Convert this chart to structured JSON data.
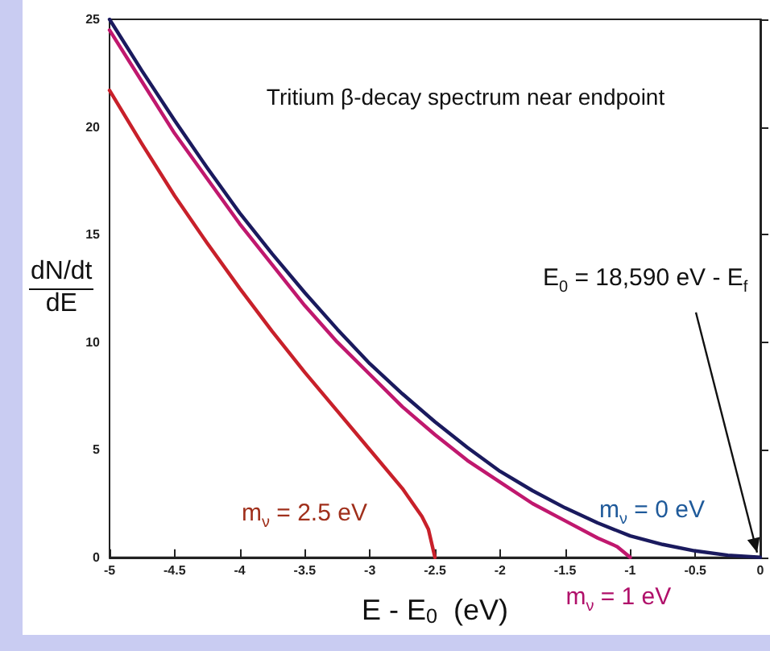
{
  "chart_data": {
    "type": "line",
    "title": "Tritium β-decay spectrum near endpoint",
    "xlabel": "E - E$_{0}$  (eV)",
    "ylabel": "dN/dt\ndE",
    "xlim": [
      -5,
      0
    ],
    "ylim": [
      0,
      25
    ],
    "xticks": [
      -5,
      -4.5,
      -4,
      -3.5,
      -3,
      -2.5,
      -2,
      -1.5,
      -1,
      -0.5,
      0
    ],
    "yticks": [
      0,
      5,
      10,
      15,
      20,
      25
    ],
    "grid": false,
    "legend": false,
    "marker": "none",
    "line_style": "solid",
    "annotations": [
      {
        "text": "E$_{0}$ = 18,590 eV - E$_{f}$",
        "x": 0,
        "y": 0
      }
    ],
    "series": [
      {
        "name": "m$_{ν}$ = 0 eV",
        "color": "#1a1a5e",
        "x": [
          -5,
          -4.75,
          -4.5,
          -4.25,
          -4,
          -3.75,
          -3.5,
          -3.25,
          -3,
          -2.75,
          -2.5,
          -2.25,
          -2,
          -1.75,
          -1.5,
          -1.25,
          -1,
          -0.75,
          -0.5,
          -0.25,
          0
        ],
        "values": [
          25,
          22.6,
          20.3,
          18.1,
          16,
          14.1,
          12.3,
          10.6,
          9,
          7.6,
          6.3,
          5.1,
          4,
          3.1,
          2.3,
          1.6,
          1,
          0.6,
          0.3,
          0.1,
          0
        ]
      },
      {
        "name": "m$_{ν}$ = 1 eV",
        "color": "#c0186e",
        "x": [
          -5,
          -4.75,
          -4.5,
          -4.25,
          -4,
          -3.75,
          -3.5,
          -3.25,
          -3,
          -2.75,
          -2.5,
          -2.25,
          -2,
          -1.75,
          -1.5,
          -1.25,
          -1.1,
          -1
        ],
        "values": [
          24.5,
          22.1,
          19.7,
          17.6,
          15.5,
          13.6,
          11.7,
          10,
          8.5,
          7,
          5.7,
          4.5,
          3.5,
          2.5,
          1.7,
          0.9,
          0.5,
          0
        ]
      },
      {
        "name": "m$_{ν}$ = 2.5 eV",
        "color": "#c8202a",
        "x": [
          -5,
          -4.75,
          -4.5,
          -4.25,
          -4,
          -3.75,
          -3.5,
          -3.25,
          -3,
          -2.75,
          -2.6,
          -2.55,
          -2.5
        ],
        "values": [
          21.7,
          19.2,
          16.8,
          14.6,
          12.5,
          10.5,
          8.6,
          6.8,
          5,
          3.2,
          1.9,
          1.3,
          0
        ]
      }
    ]
  }
}
